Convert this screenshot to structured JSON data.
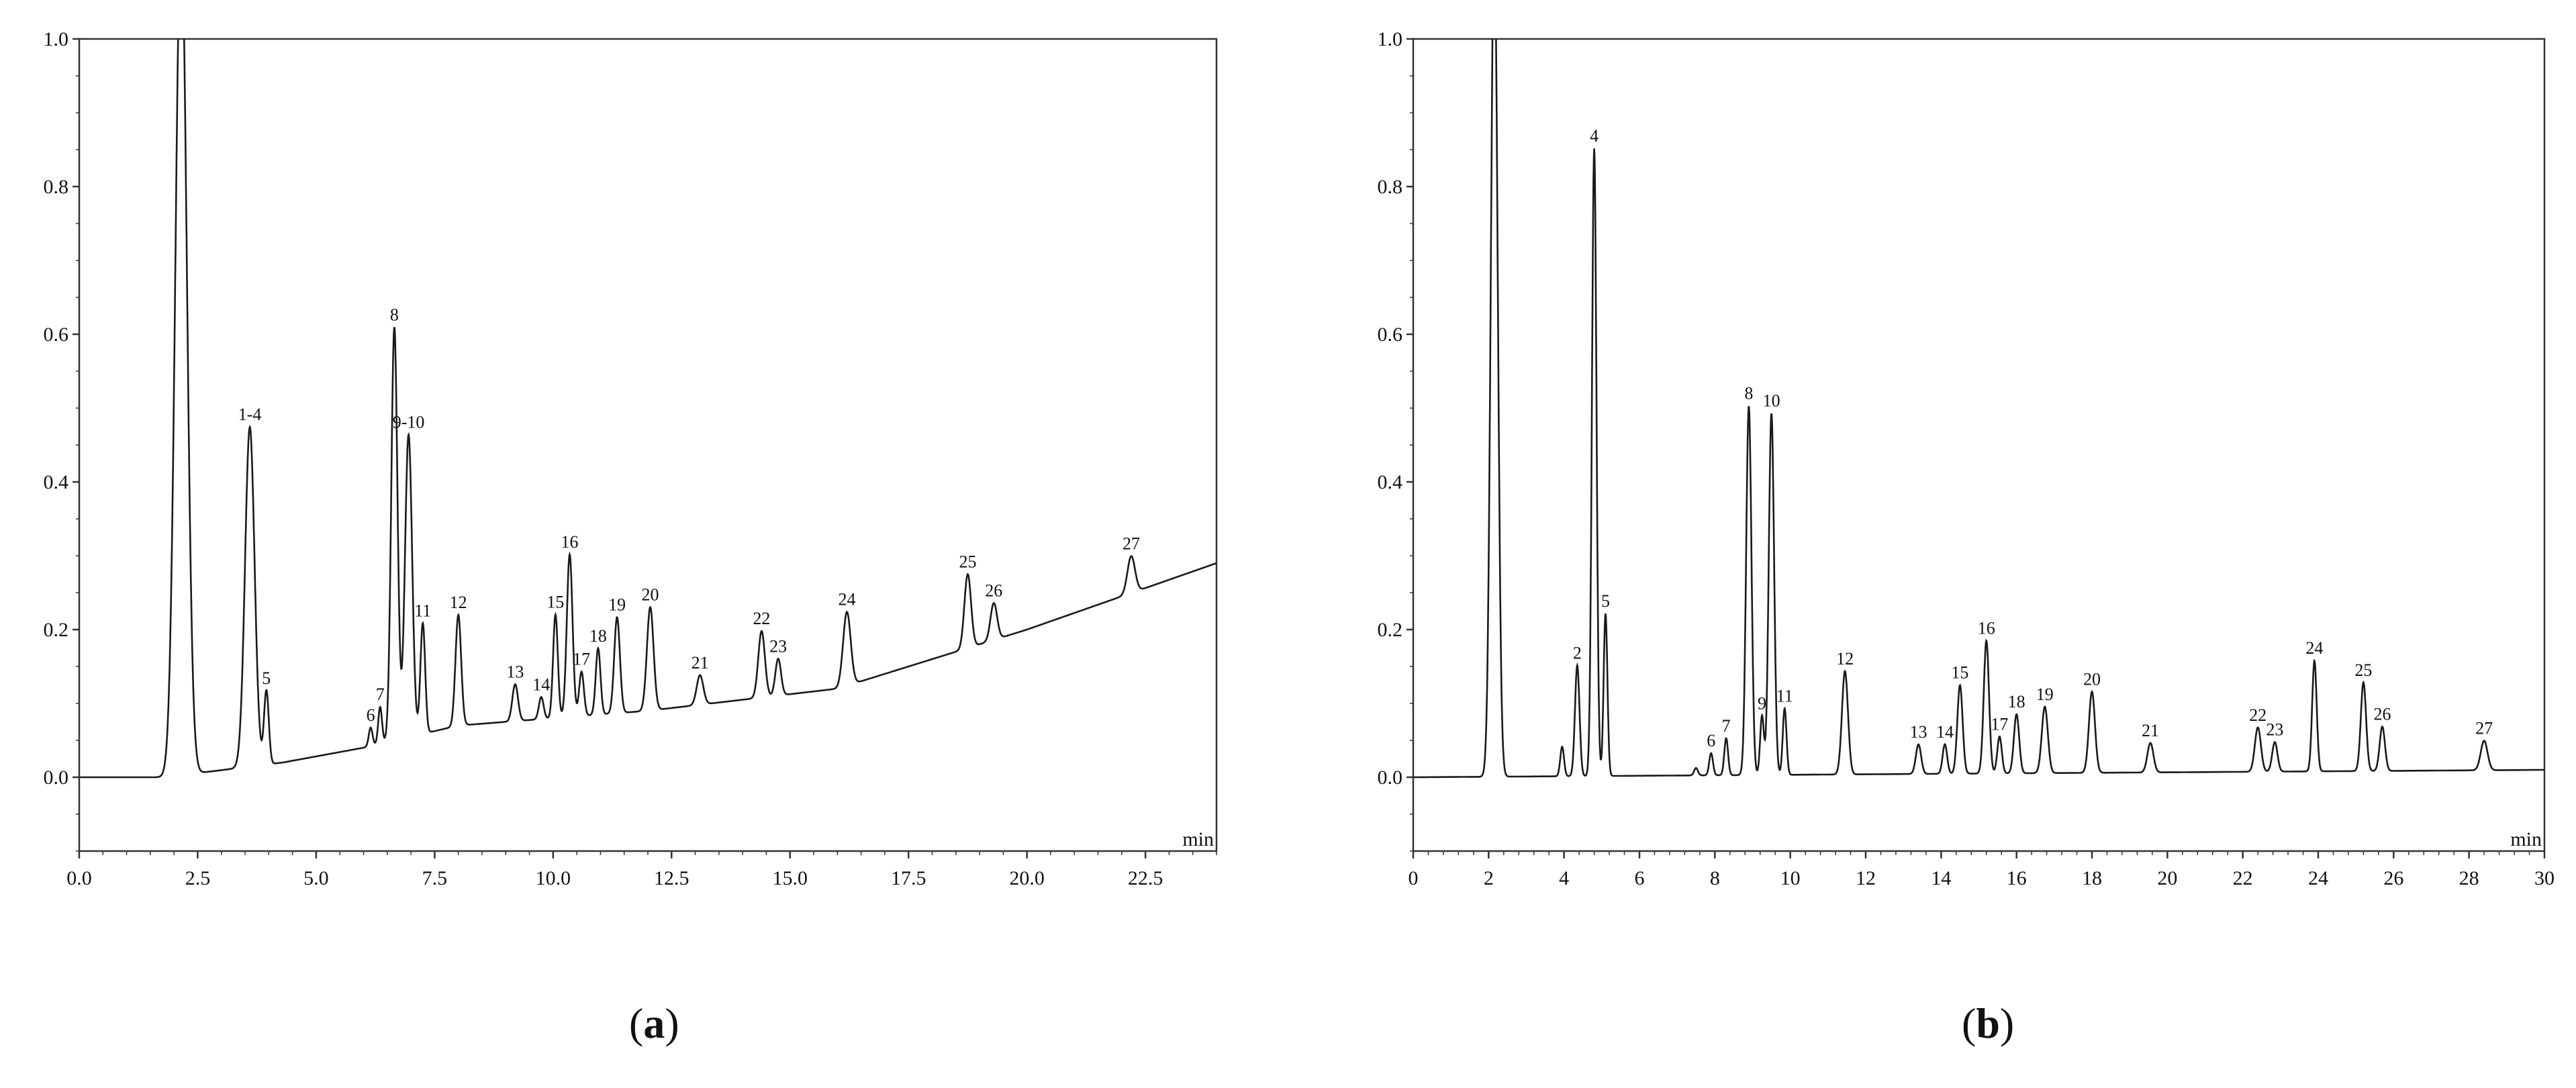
{
  "chart_data": [
    {
      "type": "line",
      "caption_letter": "a",
      "xunit": "min",
      "xlim": [
        0,
        24
      ],
      "ylim": [
        -0.1,
        1.0
      ],
      "xticks": [
        0.0,
        2.5,
        5.0,
        7.5,
        10.0,
        12.5,
        15.0,
        17.5,
        20.0,
        22.5
      ],
      "xtick_labels": [
        "0.0",
        "2.5",
        "5.0",
        "7.5",
        "10.0",
        "12.5",
        "15.0",
        "17.5",
        "20.0",
        "22.5"
      ],
      "yticks": [
        0.0,
        0.2,
        0.4,
        0.6,
        0.8,
        1.0
      ],
      "ytick_labels": [
        "0.0",
        "0.2",
        "0.4",
        "0.6",
        "0.8",
        "1.0"
      ],
      "baseline": [
        [
          0,
          0.0
        ],
        [
          1.8,
          0.0
        ],
        [
          4.3,
          0.02
        ],
        [
          6.0,
          0.04
        ],
        [
          8.0,
          0.07
        ],
        [
          12.0,
          0.09
        ],
        [
          16.0,
          0.12
        ],
        [
          20.0,
          0.2
        ],
        [
          24.0,
          0.29
        ]
      ],
      "peaks": [
        {
          "x": 2.15,
          "h": 1.15,
          "w": 0.12,
          "label": ""
        },
        {
          "x": 3.6,
          "h": 0.46,
          "w": 0.1,
          "label": "1-4"
        },
        {
          "x": 3.95,
          "h": 0.1,
          "w": 0.05,
          "label": "5"
        },
        {
          "x": 6.15,
          "h": 0.025,
          "w": 0.04,
          "label": "6"
        },
        {
          "x": 6.35,
          "h": 0.05,
          "w": 0.04,
          "label": "7"
        },
        {
          "x": 6.65,
          "h": 0.56,
          "w": 0.065,
          "label": "8"
        },
        {
          "x": 6.95,
          "h": 0.41,
          "w": 0.075,
          "label": "9-10"
        },
        {
          "x": 7.25,
          "h": 0.15,
          "w": 0.05,
          "label": "11"
        },
        {
          "x": 8.0,
          "h": 0.15,
          "w": 0.06,
          "label": "12"
        },
        {
          "x": 9.2,
          "h": 0.05,
          "w": 0.06,
          "label": "13"
        },
        {
          "x": 9.75,
          "h": 0.03,
          "w": 0.05,
          "label": "14"
        },
        {
          "x": 10.05,
          "h": 0.14,
          "w": 0.05,
          "label": "15"
        },
        {
          "x": 10.35,
          "h": 0.22,
          "w": 0.06,
          "label": "16"
        },
        {
          "x": 10.6,
          "h": 0.06,
          "w": 0.05,
          "label": "17"
        },
        {
          "x": 10.95,
          "h": 0.09,
          "w": 0.05,
          "label": "18"
        },
        {
          "x": 11.35,
          "h": 0.13,
          "w": 0.06,
          "label": "19"
        },
        {
          "x": 12.05,
          "h": 0.14,
          "w": 0.07,
          "label": "20"
        },
        {
          "x": 13.1,
          "h": 0.04,
          "w": 0.07,
          "label": "21"
        },
        {
          "x": 14.4,
          "h": 0.09,
          "w": 0.07,
          "label": "22"
        },
        {
          "x": 14.75,
          "h": 0.05,
          "w": 0.06,
          "label": "23"
        },
        {
          "x": 16.2,
          "h": 0.1,
          "w": 0.08,
          "label": "24"
        },
        {
          "x": 18.75,
          "h": 0.1,
          "w": 0.07,
          "label": "25"
        },
        {
          "x": 19.3,
          "h": 0.05,
          "w": 0.07,
          "label": "26"
        },
        {
          "x": 22.2,
          "h": 0.05,
          "w": 0.08,
          "label": "27"
        }
      ]
    },
    {
      "type": "line",
      "caption_letter": "b",
      "xunit": "min",
      "xlim": [
        0,
        30
      ],
      "ylim": [
        -0.1,
        1.0
      ],
      "xticks": [
        0,
        2,
        4,
        6,
        8,
        10,
        12,
        14,
        16,
        18,
        20,
        22,
        24,
        26,
        28,
        30
      ],
      "xtick_labels": [
        "0",
        "2",
        "4",
        "6",
        "8",
        "10",
        "12",
        "14",
        "16",
        "18",
        "20",
        "22",
        "24",
        "26",
        "28",
        "30"
      ],
      "yticks": [
        0.0,
        0.2,
        0.4,
        0.6,
        0.8,
        1.0
      ],
      "ytick_labels": [
        "0.0",
        "0.2",
        "0.4",
        "0.6",
        "0.8",
        "1.0"
      ],
      "baseline": [
        [
          0,
          0.0
        ],
        [
          30,
          0.01
        ]
      ],
      "peaks": [
        {
          "x": 2.15,
          "h": 1.15,
          "w": 0.09,
          "label": ""
        },
        {
          "x": 3.95,
          "h": 0.04,
          "w": 0.05,
          "label": ""
        },
        {
          "x": 4.35,
          "h": 0.15,
          "w": 0.06,
          "label": "2"
        },
        {
          "x": 4.8,
          "h": 0.85,
          "w": 0.06,
          "label": "4"
        },
        {
          "x": 5.1,
          "h": 0.22,
          "w": 0.05,
          "label": "5"
        },
        {
          "x": 7.5,
          "h": 0.01,
          "w": 0.05,
          "label": ""
        },
        {
          "x": 7.9,
          "h": 0.03,
          "w": 0.05,
          "label": "6"
        },
        {
          "x": 8.3,
          "h": 0.05,
          "w": 0.05,
          "label": "7"
        },
        {
          "x": 8.9,
          "h": 0.5,
          "w": 0.07,
          "label": "8"
        },
        {
          "x": 9.25,
          "h": 0.08,
          "w": 0.05,
          "label": "9"
        },
        {
          "x": 9.5,
          "h": 0.49,
          "w": 0.07,
          "label": "10"
        },
        {
          "x": 9.85,
          "h": 0.09,
          "w": 0.05,
          "label": "11"
        },
        {
          "x": 11.45,
          "h": 0.14,
          "w": 0.08,
          "label": "12"
        },
        {
          "x": 13.4,
          "h": 0.04,
          "w": 0.07,
          "label": "13"
        },
        {
          "x": 14.1,
          "h": 0.04,
          "w": 0.06,
          "label": "14"
        },
        {
          "x": 14.5,
          "h": 0.12,
          "w": 0.07,
          "label": "15"
        },
        {
          "x": 15.2,
          "h": 0.18,
          "w": 0.07,
          "label": "16"
        },
        {
          "x": 15.55,
          "h": 0.05,
          "w": 0.06,
          "label": "17"
        },
        {
          "x": 16.0,
          "h": 0.08,
          "w": 0.07,
          "label": "18"
        },
        {
          "x": 16.75,
          "h": 0.09,
          "w": 0.08,
          "label": "19"
        },
        {
          "x": 18.0,
          "h": 0.11,
          "w": 0.08,
          "label": "20"
        },
        {
          "x": 19.55,
          "h": 0.04,
          "w": 0.08,
          "label": "21"
        },
        {
          "x": 22.4,
          "h": 0.06,
          "w": 0.08,
          "label": "22"
        },
        {
          "x": 22.85,
          "h": 0.04,
          "w": 0.07,
          "label": "23"
        },
        {
          "x": 23.9,
          "h": 0.15,
          "w": 0.06,
          "label": "24"
        },
        {
          "x": 25.2,
          "h": 0.12,
          "w": 0.07,
          "label": "25"
        },
        {
          "x": 25.7,
          "h": 0.06,
          "w": 0.07,
          "label": "26"
        },
        {
          "x": 28.4,
          "h": 0.04,
          "w": 0.09,
          "label": "27"
        }
      ]
    }
  ]
}
